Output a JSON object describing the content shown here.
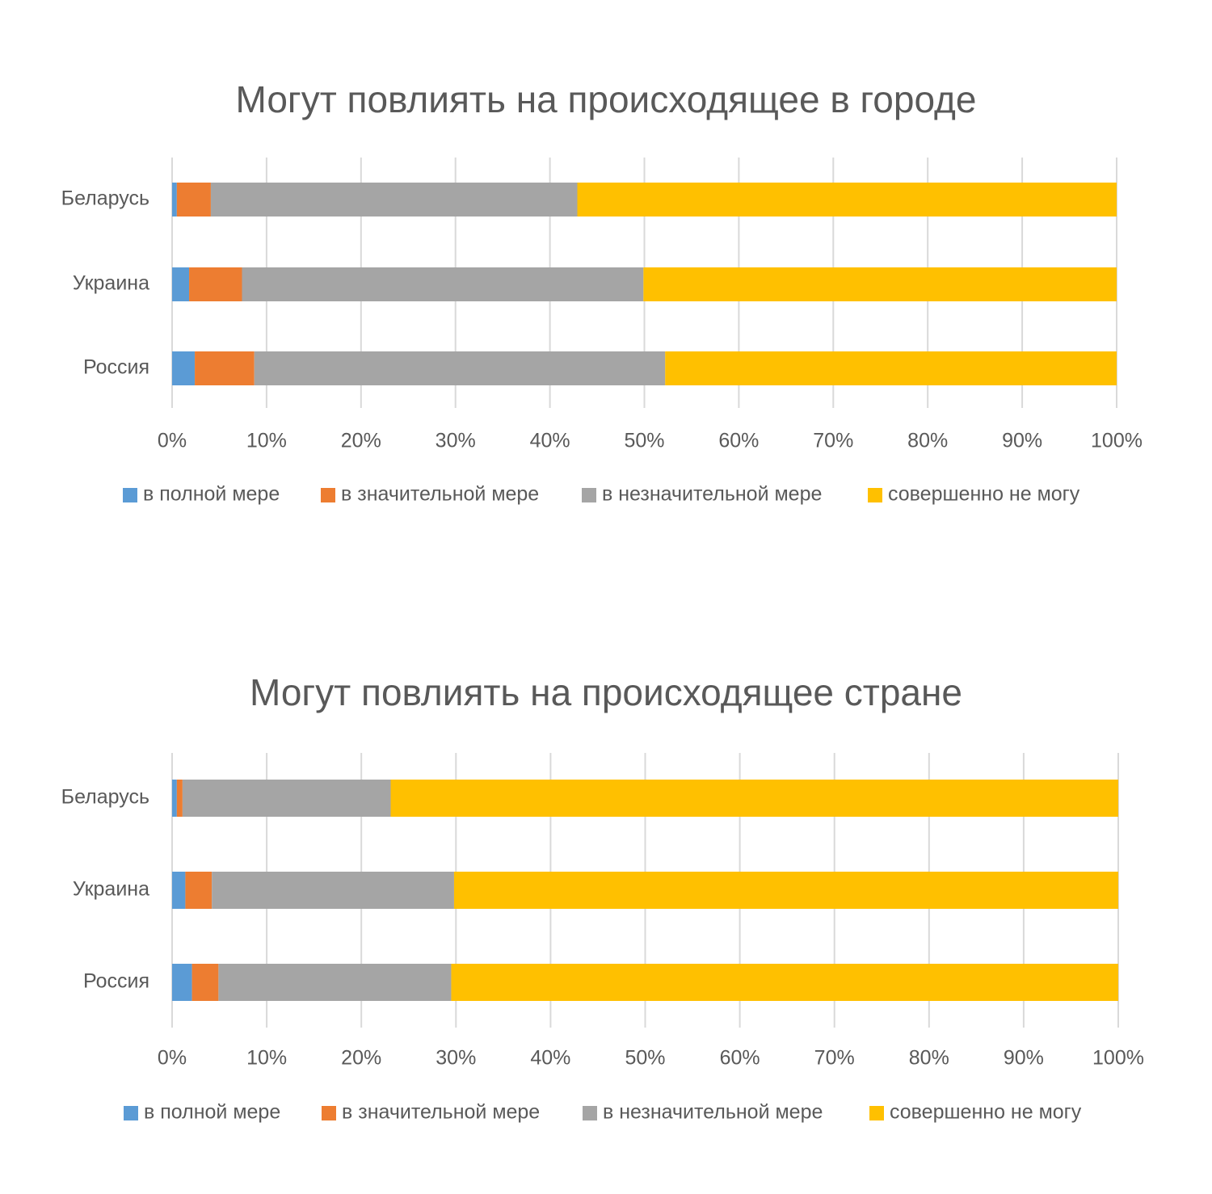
{
  "chart_data": [
    {
      "type": "bar",
      "orientation": "horizontal",
      "stacked": "percent",
      "title": "Могут повлиять на происходящее в городе",
      "categories": [
        "Беларусь",
        "Украина",
        "Россия"
      ],
      "series": [
        {
          "name": "в полной мере",
          "color": "#5b9bd5",
          "values": [
            0.5,
            1.8,
            2.4
          ]
        },
        {
          "name": "в значительной мере",
          "color": "#ed7d31",
          "values": [
            3.6,
            5.6,
            6.3
          ]
        },
        {
          "name": "в незначительной мере",
          "color": "#a5a5a5",
          "values": [
            38.8,
            42.5,
            43.5
          ]
        },
        {
          "name": "совершенно не могу",
          "color": "#ffc000",
          "values": [
            57.1,
            50.1,
            47.8
          ]
        }
      ],
      "xlim": [
        0,
        100
      ],
      "x_ticks": [
        "0%",
        "10%",
        "20%",
        "30%",
        "40%",
        "50%",
        "60%",
        "70%",
        "80%",
        "90%",
        "100%"
      ],
      "grid": true,
      "legend": "bottom"
    },
    {
      "type": "bar",
      "orientation": "horizontal",
      "stacked": "percent",
      "title": "Могут повлиять на происходящее стране",
      "categories": [
        "Беларусь",
        "Украина",
        "Россия"
      ],
      "series": [
        {
          "name": "в полной мере",
          "color": "#5b9bd5",
          "values": [
            0.5,
            1.4,
            2.1
          ]
        },
        {
          "name": "в значительной мере",
          "color": "#ed7d31",
          "values": [
            0.6,
            2.8,
            2.8
          ]
        },
        {
          "name": "в незначительной мере",
          "color": "#a5a5a5",
          "values": [
            22.0,
            25.6,
            24.6
          ]
        },
        {
          "name": "совершенно не могу",
          "color": "#ffc000",
          "values": [
            76.9,
            70.2,
            70.5
          ]
        }
      ],
      "xlim": [
        0,
        100
      ],
      "x_ticks": [
        "0%",
        "10%",
        "20%",
        "30%",
        "40%",
        "50%",
        "60%",
        "70%",
        "80%",
        "90%",
        "100%"
      ],
      "grid": true,
      "legend": "bottom"
    }
  ]
}
